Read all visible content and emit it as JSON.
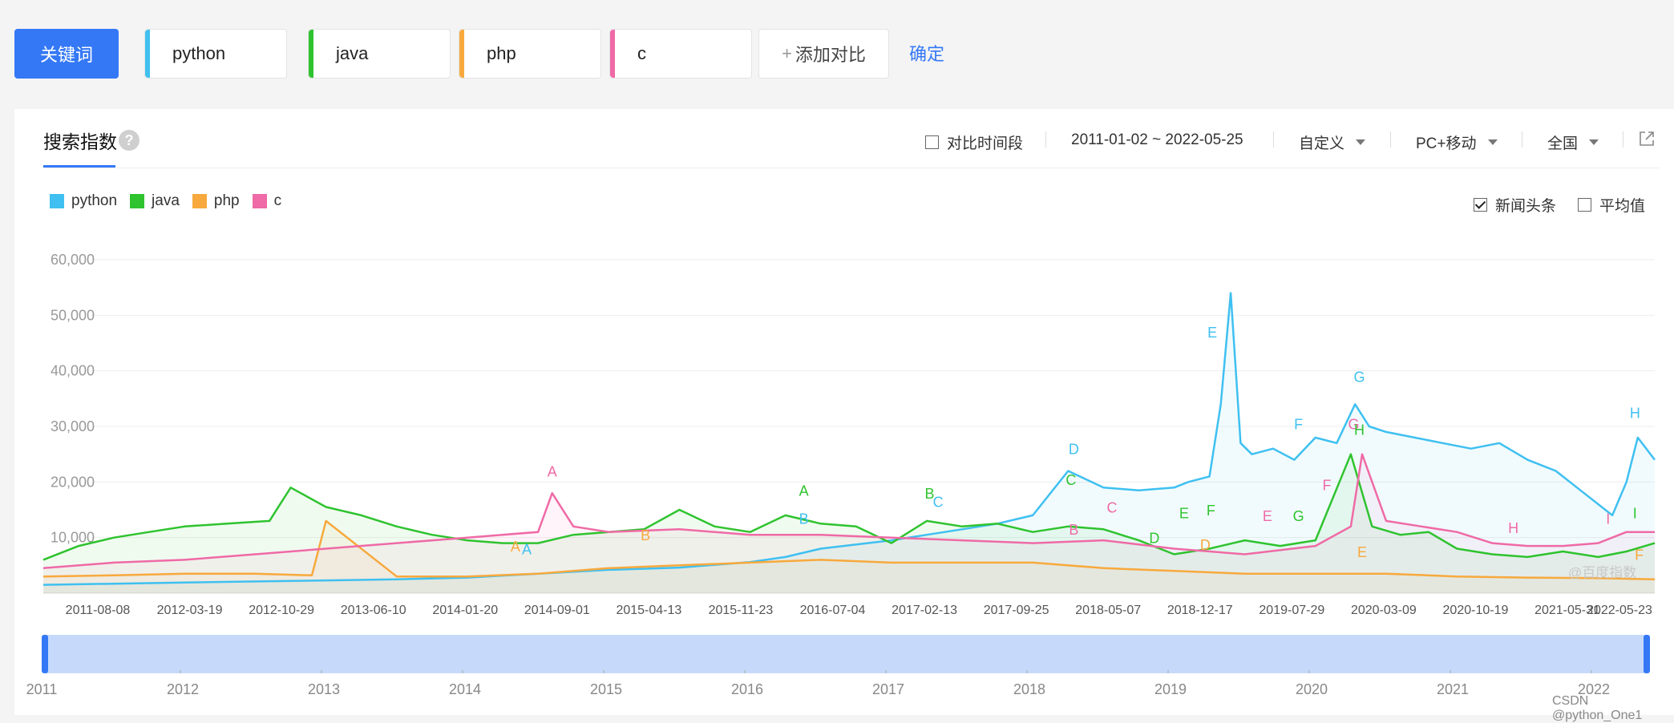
{
  "keywords_button": "关键词",
  "keywords": [
    {
      "label": "python",
      "color": "#3fc0f0"
    },
    {
      "label": "java",
      "color": "#2fc32f"
    },
    {
      "label": "php",
      "color": "#f7a93d"
    },
    {
      "label": "c",
      "color": "#ef6aa6"
    }
  ],
  "add_compare": "添加对比",
  "confirm": "确定",
  "panel": {
    "tab_title": "搜索指数",
    "compare_period": "对比时间段",
    "date_range": "2011-01-02 ~ 2022-05-25",
    "custom": "自定义",
    "device": "PC+移动",
    "region": "全国",
    "news_headlines": "新闻头条",
    "average": "平均值"
  },
  "watermark_chart": "@百度指数",
  "watermark_page": "CSDN @python_One1",
  "chart_data": {
    "type": "area",
    "y_ticks": [
      "10,000",
      "20,000",
      "30,000",
      "40,000",
      "50,000",
      "60,000"
    ],
    "ylim": [
      0,
      60000
    ],
    "x_tick_labels": [
      "2011-08-08",
      "2012-03-19",
      "2012-10-29",
      "2013-06-10",
      "2014-01-20",
      "2014-09-01",
      "2015-04-13",
      "2015-11-23",
      "2016-07-04",
      "2017-02-13",
      "2017-09-25",
      "2018-05-07",
      "2018-12-17",
      "2019-07-29",
      "2020-03-09",
      "2020-10-19",
      "2021-05-31",
      "2022-05-23"
    ],
    "x_range": [
      "2011-01-02",
      "2022-05-25"
    ],
    "grid": true,
    "legend": "top-left",
    "navigator_years": [
      "2011",
      "2012",
      "2013",
      "2014",
      "2015",
      "2016",
      "2017",
      "2018",
      "2019",
      "2020",
      "2021",
      "2022"
    ],
    "series": [
      {
        "name": "python",
        "color": "#3fc0f0",
        "x": [
          2011.0,
          2011.5,
          2012.0,
          2012.5,
          2013.0,
          2013.5,
          2014.0,
          2014.5,
          2015.0,
          2015.5,
          2016.0,
          2016.25,
          2016.5,
          2017.0,
          2017.25,
          2017.5,
          2017.75,
          2018.0,
          2018.25,
          2018.5,
          2018.75,
          2019.0,
          2019.1,
          2019.25,
          2019.33,
          2019.4,
          2019.47,
          2019.55,
          2019.7,
          2019.85,
          2020.0,
          2020.15,
          2020.28,
          2020.38,
          2020.5,
          2020.7,
          2020.9,
          2021.1,
          2021.3,
          2021.5,
          2021.7,
          2021.9,
          2022.1,
          2022.2,
          2022.28,
          2022.4
        ],
        "y": [
          1500,
          1700,
          1900,
          2100,
          2300,
          2500,
          2800,
          3500,
          4200,
          4600,
          5600,
          6500,
          8000,
          9500,
          10500,
          11500,
          12500,
          14000,
          22000,
          19000,
          18500,
          19000,
          20000,
          21000,
          34000,
          54000,
          27000,
          25000,
          26000,
          24000,
          28000,
          27000,
          34000,
          30000,
          29000,
          28000,
          27000,
          26000,
          27000,
          24000,
          22000,
          18000,
          14000,
          20000,
          28000,
          24000
        ]
      },
      {
        "name": "java",
        "color": "#2fc32f",
        "x": [
          2011.0,
          2011.25,
          2011.5,
          2011.75,
          2012.0,
          2012.3,
          2012.6,
          2012.75,
          2013.0,
          2013.25,
          2013.5,
          2013.75,
          2014.0,
          2014.25,
          2014.5,
          2014.75,
          2015.0,
          2015.25,
          2015.5,
          2015.75,
          2016.0,
          2016.25,
          2016.5,
          2016.75,
          2017.0,
          2017.25,
          2017.5,
          2017.75,
          2018.0,
          2018.25,
          2018.5,
          2018.75,
          2019.0,
          2019.25,
          2019.5,
          2019.75,
          2020.0,
          2020.25,
          2020.4,
          2020.6,
          2020.8,
          2021.0,
          2021.25,
          2021.5,
          2021.75,
          2022.0,
          2022.2,
          2022.4
        ],
        "y": [
          6000,
          8500,
          10000,
          11000,
          12000,
          12500,
          13000,
          19000,
          15500,
          14000,
          12000,
          10500,
          9500,
          9000,
          9000,
          10500,
          11000,
          11500,
          15000,
          12000,
          11000,
          14000,
          12500,
          12000,
          9000,
          13000,
          12000,
          12500,
          11000,
          12000,
          11500,
          9500,
          7000,
          8000,
          9500,
          8500,
          9500,
          25000,
          12000,
          10500,
          11000,
          8000,
          7000,
          6500,
          7500,
          6500,
          7500,
          9000
        ]
      },
      {
        "name": "php",
        "color": "#f7a93d",
        "x": [
          2011.0,
          2011.5,
          2012.0,
          2012.5,
          2012.9,
          2013.0,
          2013.5,
          2014.0,
          2014.5,
          2015.0,
          2015.5,
          2016.0,
          2016.5,
          2017.0,
          2017.5,
          2018.0,
          2018.5,
          2019.0,
          2019.5,
          2020.0,
          2020.5,
          2021.0,
          2021.5,
          2022.0,
          2022.4
        ],
        "y": [
          3000,
          3200,
          3500,
          3500,
          3200,
          13000,
          3000,
          3000,
          3500,
          4500,
          5000,
          5500,
          6000,
          5500,
          5500,
          5500,
          4500,
          4000,
          3500,
          3500,
          3500,
          3000,
          2800,
          2700,
          2500
        ]
      },
      {
        "name": "c",
        "color": "#ef6aa6",
        "x": [
          2011.0,
          2011.5,
          2012.0,
          2012.5,
          2013.0,
          2013.5,
          2014.0,
          2014.5,
          2014.6,
          2014.75,
          2015.0,
          2015.5,
          2016.0,
          2016.5,
          2017.0,
          2017.5,
          2018.0,
          2018.5,
          2019.0,
          2019.5,
          2020.0,
          2020.25,
          2020.33,
          2020.5,
          2020.75,
          2021.0,
          2021.25,
          2021.5,
          2021.75,
          2022.0,
          2022.2,
          2022.4
        ],
        "y": [
          4500,
          5500,
          6000,
          7000,
          8000,
          9000,
          10000,
          11000,
          18000,
          12000,
          11000,
          11500,
          10500,
          10500,
          10000,
          9500,
          9000,
          9500,
          8000,
          7000,
          8500,
          12000,
          25000,
          13000,
          12000,
          11000,
          9000,
          8500,
          8500,
          9000,
          11000,
          11000
        ]
      }
    ],
    "annotations": [
      {
        "letter": "A",
        "series": "c",
        "x": 2014.6,
        "y": 21000
      },
      {
        "letter": "A",
        "series": "php",
        "x": 2014.34,
        "y": 7500
      },
      {
        "letter": "A",
        "series": "python",
        "x": 2014.42,
        "y": 7000
      },
      {
        "letter": "A",
        "series": "java",
        "x": 2016.38,
        "y": 17500
      },
      {
        "letter": "B",
        "series": "python",
        "x": 2016.38,
        "y": 12500
      },
      {
        "letter": "B",
        "series": "php",
        "x": 2015.26,
        "y": 9500
      },
      {
        "letter": "B",
        "series": "java",
        "x": 2017.27,
        "y": 17000
      },
      {
        "letter": "C",
        "series": "python",
        "x": 2017.33,
        "y": 15500
      },
      {
        "letter": "D",
        "series": "python",
        "x": 2018.29,
        "y": 25000
      },
      {
        "letter": "C",
        "series": "java",
        "x": 2018.27,
        "y": 19500
      },
      {
        "letter": "B",
        "series": "c",
        "x": 2018.29,
        "y": 10500
      },
      {
        "letter": "C",
        "series": "c",
        "x": 2018.56,
        "y": 14500
      },
      {
        "letter": "D",
        "series": "java",
        "x": 2018.86,
        "y": 9000
      },
      {
        "letter": "E",
        "series": "java",
        "x": 2019.07,
        "y": 13500
      },
      {
        "letter": "D",
        "series": "php",
        "x": 2019.22,
        "y": 7800
      },
      {
        "letter": "E",
        "series": "python",
        "x": 2019.27,
        "y": 46000
      },
      {
        "letter": "F",
        "series": "java",
        "x": 2019.26,
        "y": 14000
      },
      {
        "letter": "E",
        "series": "c",
        "x": 2019.66,
        "y": 13000
      },
      {
        "letter": "F",
        "series": "python",
        "x": 2019.88,
        "y": 29500
      },
      {
        "letter": "G",
        "series": "java",
        "x": 2019.88,
        "y": 13000
      },
      {
        "letter": "F",
        "series": "c",
        "x": 2020.08,
        "y": 18500
      },
      {
        "letter": "E",
        "series": "php",
        "x": 2020.33,
        "y": 6500
      },
      {
        "letter": "G",
        "series": "python",
        "x": 2020.31,
        "y": 38000
      },
      {
        "letter": "G",
        "series": "c",
        "x": 2020.27,
        "y": 29500
      },
      {
        "letter": "H",
        "series": "java",
        "x": 2020.31,
        "y": 28500
      },
      {
        "letter": "H",
        "series": "c",
        "x": 2021.4,
        "y": 10800
      },
      {
        "letter": "I",
        "series": "c",
        "x": 2022.07,
        "y": 12500
      },
      {
        "letter": "I",
        "series": "java",
        "x": 2022.26,
        "y": 13500
      },
      {
        "letter": "F",
        "series": "php",
        "x": 2022.29,
        "y": 6000
      },
      {
        "letter": "H",
        "series": "python",
        "x": 2022.26,
        "y": 31500
      }
    ]
  }
}
